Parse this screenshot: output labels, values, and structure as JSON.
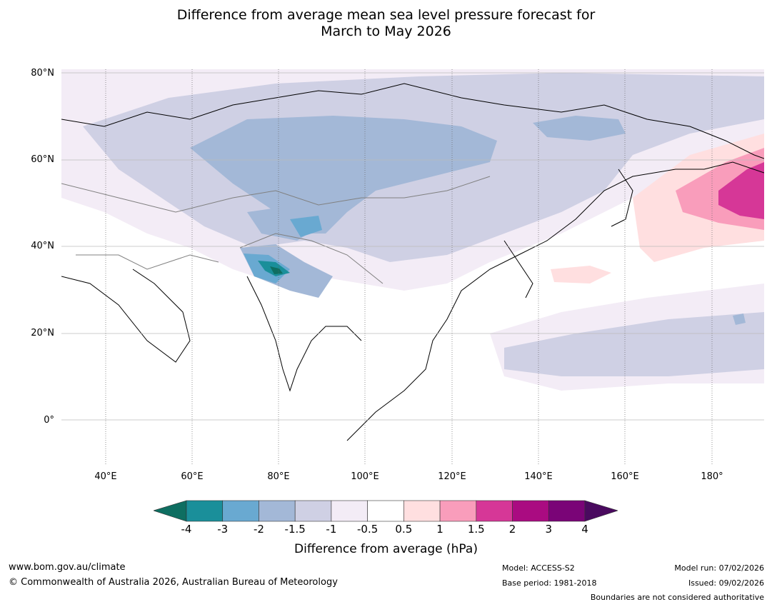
{
  "title": {
    "line1": "Difference from average mean sea level pressure forecast for",
    "line2": "March to May 2026"
  },
  "map": {
    "latitude_labels": [
      "80°N",
      "60°N",
      "40°N",
      "20°N",
      "0°"
    ],
    "longitude_labels": [
      "40°E",
      "60°E",
      "80°E",
      "100°E",
      "120°E",
      "140°E",
      "160°E",
      "180°"
    ]
  },
  "colorbar": {
    "label": "Difference from average (hPa)",
    "ticks": [
      "-4",
      "-3",
      "-2",
      "-1.5",
      "-1",
      "-0.5",
      "0.5",
      "1",
      "1.5",
      "2",
      "3",
      "4"
    ],
    "colors": [
      "#0e6e61",
      "#1a8f9a",
      "#69a9d1",
      "#a3b8d7",
      "#cfd0e4",
      "#f3ecf6",
      "#ffffff",
      "#ffdfe0",
      "#f99dbb",
      "#d63797",
      "#aa0b81",
      "#7a0477",
      "#4a0a5f"
    ]
  },
  "footer": {
    "website": "www.bom.gov.au/climate",
    "copyright": "© Commonwealth of Australia 2026, Australian Bureau of Meteorology",
    "model": "Model: ACCESS-S2",
    "base_period": "Base period: 1981-2018",
    "model_run": "Model run: 07/02/2026",
    "issued": "Issued: 09/02/2026",
    "disclaimer": "Boundaries are not considered authoritative"
  }
}
